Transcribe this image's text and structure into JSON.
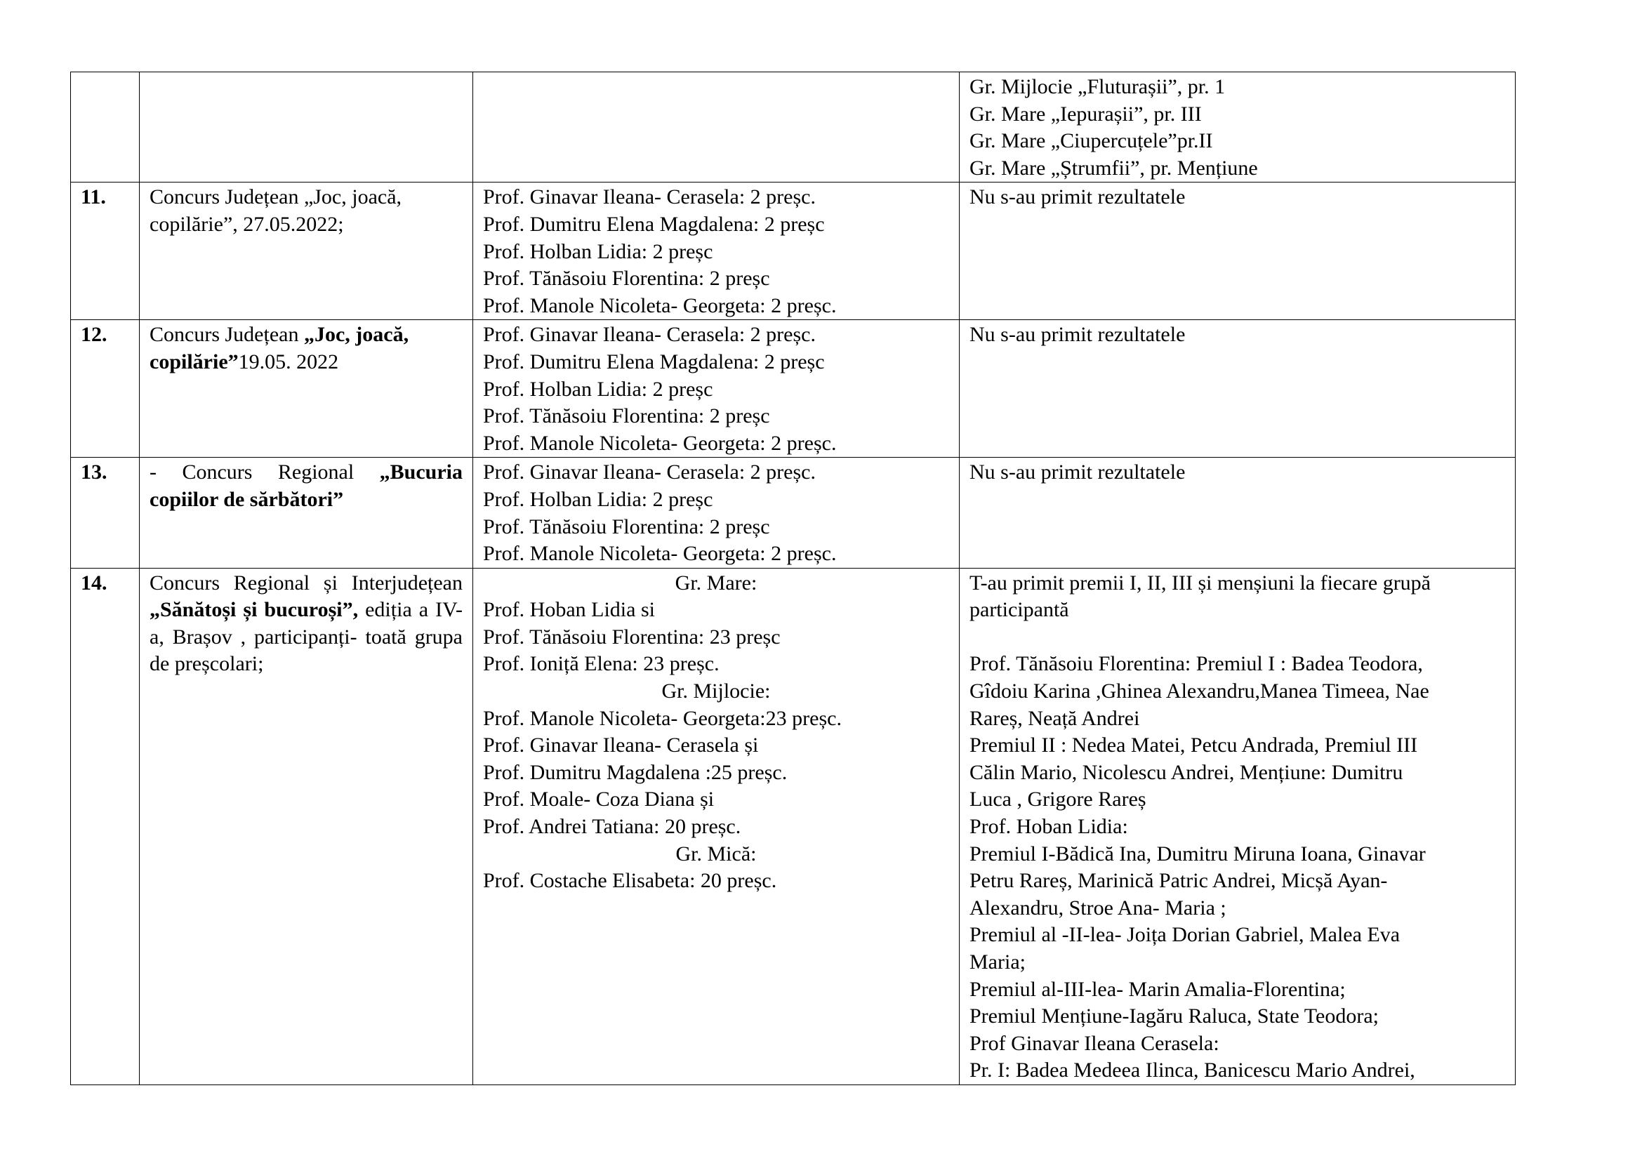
{
  "rows": [
    {
      "number": "",
      "event": [],
      "event_justify": false,
      "participants": [],
      "results": [
        "Gr. Mijlocie „Fluturașii”, pr. 1",
        "Gr. Mare „Iepurașii”, pr. III",
        "Gr. Mare „Ciupercuțele”pr.II",
        "Gr. Mare „Ștrumfii”, pr. Mențiune"
      ]
    },
    {
      "number": "11.",
      "event": [
        {
          "text": "Concurs Județean „Joc, joacă, copilărie”, 27.05.2022;",
          "bold": false
        }
      ],
      "event_justify": false,
      "participants": [
        {
          "text": "Prof. Ginavar Ileana- Cerasela: 2 preșc."
        },
        {
          "text": "Prof. Dumitru Elena Magdalena: 2 preșc"
        },
        {
          "text": "Prof. Holban Lidia: 2 preșc"
        },
        {
          "text": "Prof. Tănăsoiu Florentina: 2 preșc"
        },
        {
          "text": "Prof. Manole Nicoleta- Georgeta: 2 preșc."
        }
      ],
      "results": [
        "Nu s-au primit rezultatele"
      ]
    },
    {
      "number": "12.",
      "event": [
        {
          "text": "Concurs Județean ",
          "bold": false
        },
        {
          "text": "„Joc, joacă, copilărie”",
          "bold": true
        },
        {
          "text": "19.05. 2022",
          "bold": false
        }
      ],
      "event_justify": false,
      "participants": [
        {
          "text": "Prof. Ginavar Ileana- Cerasela: 2 preșc."
        },
        {
          "text": "Prof. Dumitru Elena Magdalena: 2 preșc"
        },
        {
          "text": "Prof. Holban Lidia: 2 preșc"
        },
        {
          "text": "Prof. Tănăsoiu Florentina: 2 preșc"
        },
        {
          "text": "Prof. Manole Nicoleta- Georgeta: 2 preșc."
        }
      ],
      "results": [
        "Nu s-au primit rezultatele"
      ]
    },
    {
      "number": "13.",
      "event": [
        {
          "text": "- Concurs Regional ",
          "bold": false
        },
        {
          "text": "„Bucuria copiilor de sărbători”",
          "bold": true
        }
      ],
      "event_justify": true,
      "participants": [
        {
          "text": "Prof. Ginavar Ileana- Cerasela: 2 preșc."
        },
        {
          "text": "Prof. Holban Lidia: 2 preșc"
        },
        {
          "text": "Prof. Tănăsoiu Florentina: 2 preșc"
        },
        {
          "text": "Prof. Manole Nicoleta- Georgeta: 2 preșc."
        }
      ],
      "results": [
        "Nu s-au primit rezultatele"
      ]
    },
    {
      "number": "14.",
      "event": [
        {
          "text": "Concurs Regional și Interjudețean ",
          "bold": false
        },
        {
          "text": "„Sănătoși și bucuroși”,",
          "bold": true
        },
        {
          "text": " ediția a IV-a, Brașov , participanți- toată grupa de preșcolari;",
          "bold": false
        }
      ],
      "event_justify": true,
      "participants": [
        {
          "text": "Gr. Mare:",
          "center": true
        },
        {
          "text": "Prof. Hoban Lidia si"
        },
        {
          "text": "Prof. Tănăsoiu Florentina: 23 preșc"
        },
        {
          "text": "Prof. Ioniță Elena: 23 preșc."
        },
        {
          "text": "Gr. Mijlocie:",
          "center": true
        },
        {
          "text": "Prof. Manole Nicoleta- Georgeta:23 preșc."
        },
        {
          "text": "Prof. Ginavar Ileana- Cerasela și"
        },
        {
          "text": "Prof. Dumitru Magdalena :25 preșc."
        },
        {
          "text": "Prof. Moale- Coza Diana și"
        },
        {
          "text": "Prof. Andrei Tatiana: 20 preșc."
        },
        {
          "text": "Gr. Mică:",
          "center": true
        },
        {
          "text": "Prof. Costache Elisabeta: 20 preșc."
        }
      ],
      "results": [
        "T-au primit premii I, II, III și menșiuni la fiecare grupă",
        "participantă",
        "",
        "Prof. Tănăsoiu Florentina: Premiul I : Badea Teodora,",
        "Gîdoiu Karina ,Ghinea Alexandru,Manea Timeea, Nae",
        "Rareș, Neață Andrei",
        "Premiul II : Nedea Matei, Petcu Andrada, Premiul III",
        "Călin Mario, Nicolescu Andrei, Mențiune: Dumitru",
        "Luca , Grigore Rareș",
        "Prof. Hoban Lidia:",
        "Premiul I-Bădică Ina, Dumitru Miruna Ioana, Ginavar",
        "Petru Rareș, Marinică Patric Andrei, Micșă Ayan-",
        "Alexandru, Stroe Ana- Maria ;",
        "Premiul al -II-lea- Joița Dorian Gabriel, Malea Eva",
        "Maria;",
        "Premiul al-III-lea- Marin Amalia-Florentina;",
        "Premiul Mențiune-Iagăru Raluca, State Teodora;",
        "Prof Ginavar Ileana Cerasela:",
        "Pr. I: Badea Medeea Ilinca, Banicescu Mario Andrei,"
      ]
    }
  ]
}
